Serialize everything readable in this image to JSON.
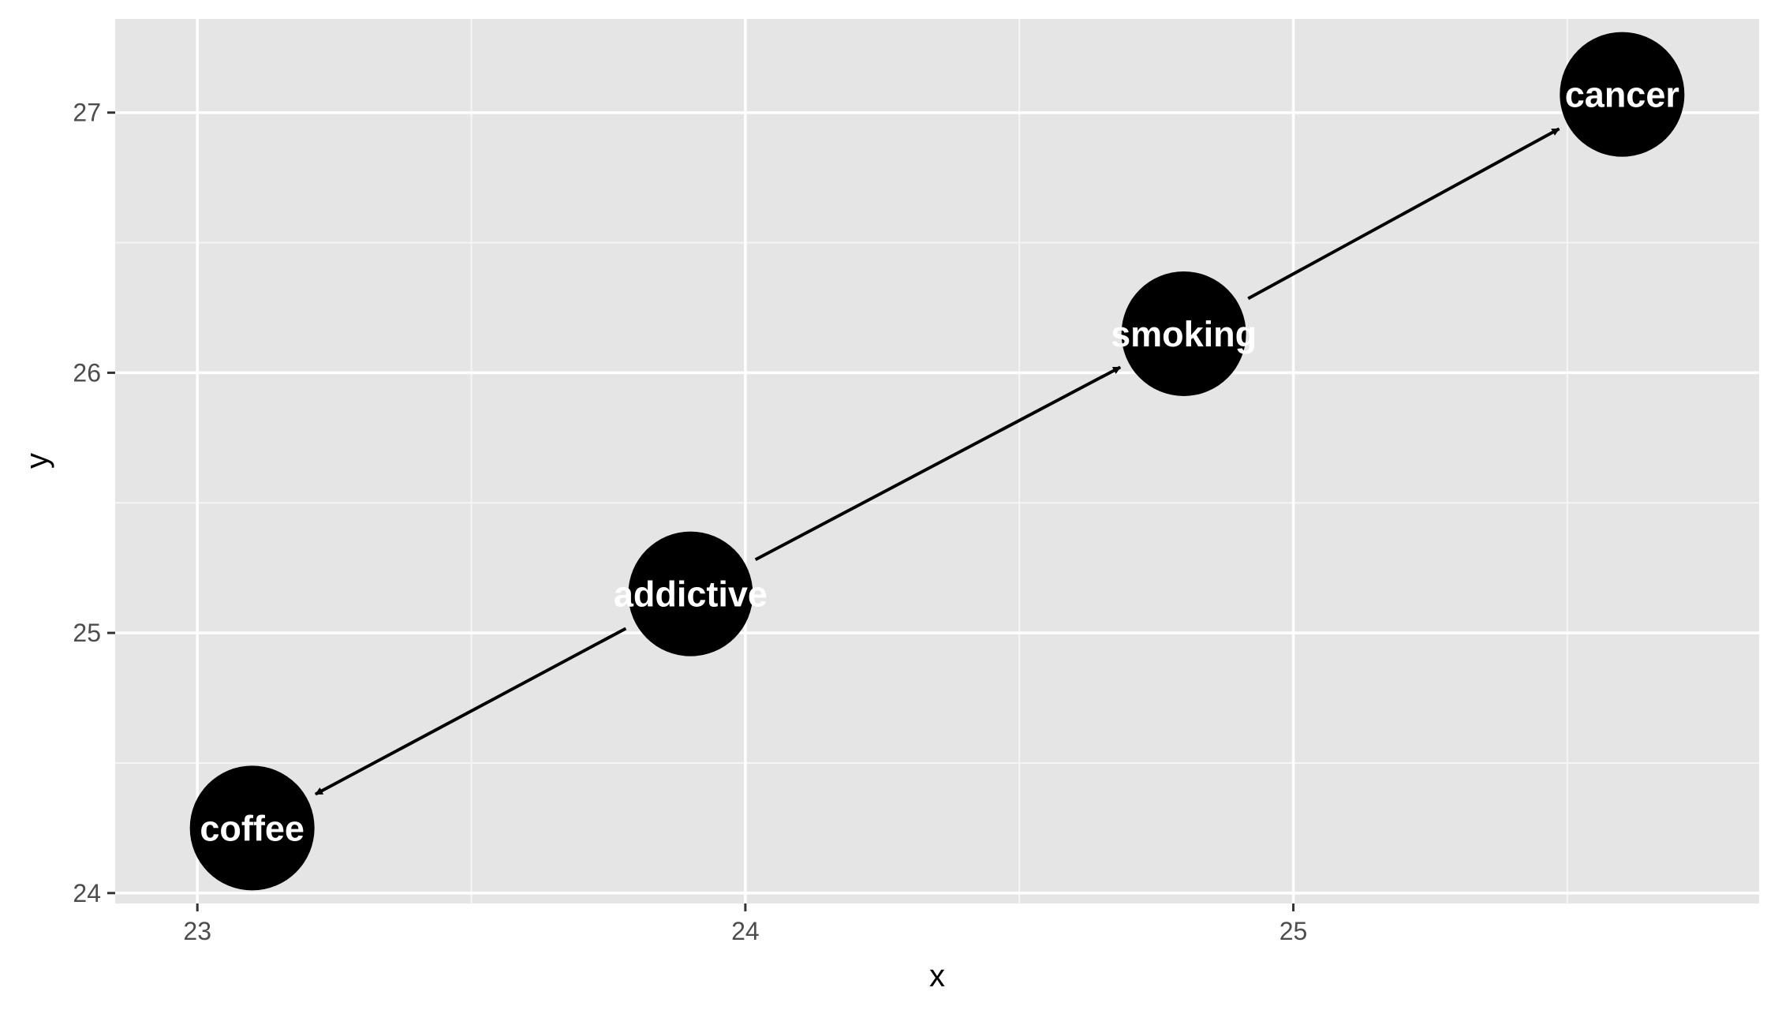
{
  "chart_data": {
    "type": "dag",
    "xlabel": "x",
    "ylabel": "y",
    "xlim": [
      22.85,
      25.85
    ],
    "ylim": [
      23.96,
      27.36
    ],
    "x_ticks": [
      {
        "value": 23,
        "label": "23"
      },
      {
        "value": 24,
        "label": "24"
      },
      {
        "value": 25,
        "label": "25"
      }
    ],
    "x_minor": [
      23.5,
      24.5,
      25.5
    ],
    "y_ticks": [
      {
        "value": 24,
        "label": "24"
      },
      {
        "value": 25,
        "label": "25"
      },
      {
        "value": 26,
        "label": "26"
      },
      {
        "value": 27,
        "label": "27"
      }
    ],
    "y_minor": [
      24.5,
      25.5,
      26.5
    ],
    "nodes": [
      {
        "id": "coffee",
        "label": "coffee",
        "x": 23.1,
        "y": 24.25
      },
      {
        "id": "addictive",
        "label": "addictive",
        "x": 23.9,
        "y": 25.15
      },
      {
        "id": "smoking",
        "label": "smoking",
        "x": 24.8,
        "y": 26.15
      },
      {
        "id": "cancer",
        "label": "cancer",
        "x": 25.6,
        "y": 27.07
      }
    ],
    "edges": [
      {
        "from": "addictive",
        "to": "coffee"
      },
      {
        "from": "addictive",
        "to": "smoking"
      },
      {
        "from": "smoking",
        "to": "cancer"
      }
    ],
    "grid": true,
    "legend": "none"
  },
  "colors": {
    "panel_background": "#e5e5e5",
    "grid_major": "#ffffff",
    "grid_minor": "#f5f5f5",
    "node_fill": "#000000",
    "node_text": "#ffffff",
    "edge": "#000000",
    "tick_text": "#4d4d4d"
  }
}
